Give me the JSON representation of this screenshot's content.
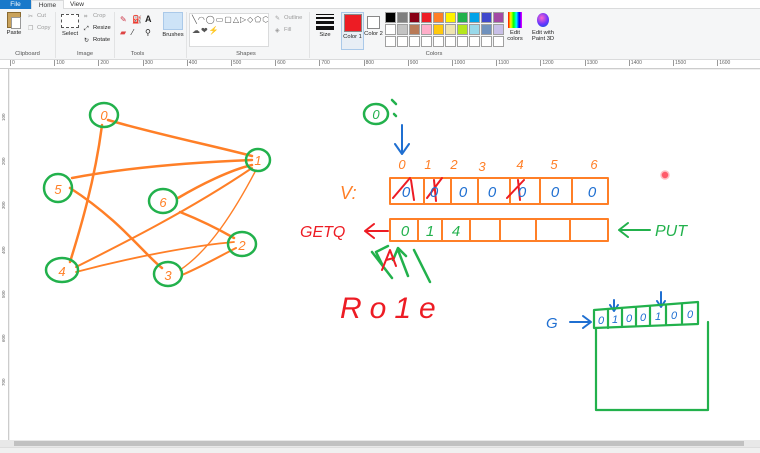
{
  "tabs": {
    "file": "File",
    "home": "Home",
    "view": "View"
  },
  "clipboard": {
    "paste": "Paste",
    "cut": "Cut",
    "copy": "Copy",
    "group_label": "Clipboard"
  },
  "image": {
    "select": "Select",
    "crop": "Crop",
    "resize": "Resize",
    "rotate": "Rotate",
    "group_label": "Image"
  },
  "tools": {
    "text_icon": "A",
    "group_label": "Tools"
  },
  "brushes": {
    "label": "Brushes"
  },
  "shapes": {
    "outline": "Outline",
    "fill": "Fill",
    "group_label": "Shapes"
  },
  "size": {
    "label": "Size"
  },
  "colors": {
    "color1_label": "Color 1",
    "color2_label": "Color 2",
    "edit_colors": "Edit colors",
    "edit_with_paint3d": "Edit with Paint 3D",
    "group_label": "Colors",
    "color1_value": "#ed1c24",
    "color2_value": "#ffffff",
    "palette": [
      "#000000",
      "#7f7f7f",
      "#880015",
      "#ed1c24",
      "#ff7f27",
      "#fff200",
      "#22b14c",
      "#00a2e8",
      "#3f48cc",
      "#a349a4",
      "#ffffff",
      "#c3c3c3",
      "#b97a57",
      "#ffaec9",
      "#ffc90e",
      "#efe4b0",
      "#b5e61d",
      "#99d9ea",
      "#7092be",
      "#c8bfe7",
      "#ffffff",
      "#ffffff",
      "#ffffff",
      "#ffffff",
      "#ffffff",
      "#ffffff",
      "#ffffff",
      "#ffffff",
      "#ffffff",
      "#ffffff"
    ]
  },
  "ruler": {
    "top_ticks": [
      "0",
      "100",
      "200",
      "300",
      "400",
      "500",
      "600",
      "700",
      "800",
      "900",
      "1000",
      "1100",
      "1200",
      "1300",
      "1400",
      "1500",
      "1600"
    ],
    "left_ticks": [
      "100",
      "200",
      "300",
      "400",
      "500",
      "600",
      "700"
    ]
  },
  "drawing": {
    "graph_nodes": [
      "0",
      "1",
      "2",
      "3",
      "4",
      "5",
      "6"
    ],
    "queue_start_node": "0",
    "v_label": "V:",
    "v_indices": [
      "0",
      "1",
      "2",
      "3",
      "4",
      "5",
      "6"
    ],
    "v_values": [
      "0",
      "0",
      "0",
      "0",
      "0",
      "0",
      "0"
    ],
    "getq_label": "GETQ",
    "queue_values": [
      "0",
      "1",
      "4"
    ],
    "put_label": "PUT",
    "rotate_label": "Ro1e",
    "g_label": "G",
    "g_bits": [
      "0",
      "1",
      "0",
      "0",
      "1",
      "0",
      "0"
    ]
  }
}
